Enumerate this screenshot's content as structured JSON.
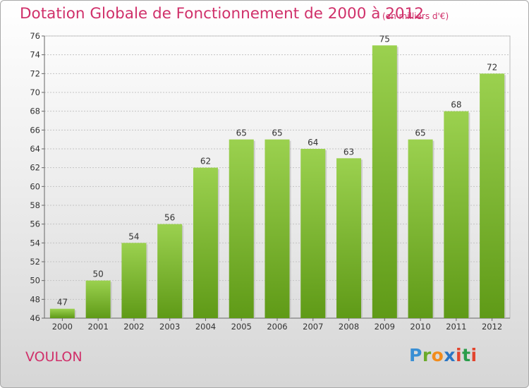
{
  "title": "Dotation Globale de Fonctionnement de 2000 à 2012",
  "subtitle": "(en milliers d'€)",
  "commune": "VOULON",
  "logo": {
    "letters": [
      "P",
      "r",
      "o",
      "x",
      "i",
      "t",
      "i"
    ],
    "colors": [
      "#3a8fd4",
      "#6aaa2a",
      "#f28c1c",
      "#2a76c4",
      "#e2452e",
      "#2a9d4a",
      "#e2452e"
    ]
  },
  "colors": {
    "title": "#d0306a",
    "bar_light": "#9bd14f",
    "bar_dark": "#5f9a17"
  },
  "chart_data": {
    "type": "bar",
    "title": "Dotation Globale de Fonctionnement de 2000 à 2012",
    "subtitle": "(en milliers d'€)",
    "xlabel": "",
    "ylabel": "",
    "categories": [
      "2000",
      "2001",
      "2002",
      "2003",
      "2004",
      "2005",
      "2006",
      "2007",
      "2008",
      "2009",
      "2010",
      "2011",
      "2012"
    ],
    "values": [
      47,
      50,
      54,
      56,
      62,
      65,
      65,
      64,
      63,
      75,
      65,
      68,
      72
    ],
    "ylim": [
      46,
      76
    ],
    "yticks": [
      46,
      48,
      50,
      52,
      54,
      56,
      58,
      60,
      62,
      64,
      66,
      68,
      70,
      72,
      74,
      76
    ],
    "grid": true,
    "legend": "none"
  }
}
